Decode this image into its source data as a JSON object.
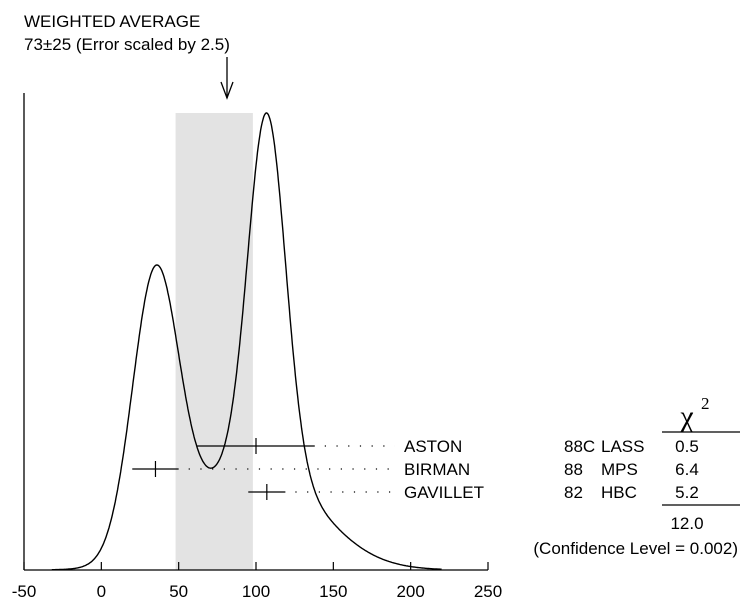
{
  "chart_data": {
    "type": "ideogram",
    "title": "WEIGHTED AVERAGE",
    "subtitle": "73±25 (Error scaled by 2.5)",
    "weighted_average": {
      "value": 73,
      "error": 25,
      "band": [
        48,
        98
      ]
    },
    "xlim": [
      -50,
      250
    ],
    "x_ticks": [
      -50,
      0,
      50,
      100,
      150,
      200,
      250
    ],
    "x_tick_labels": [
      "-50",
      "0",
      "50",
      "100",
      "150",
      "200",
      "250"
    ],
    "chi2_header": "χ",
    "chi2_superscript": "2",
    "measurements": [
      {
        "author": "ASTON",
        "year": "88C",
        "experiment": "LASS",
        "value": 100,
        "error": 38,
        "chi2": "0.5"
      },
      {
        "author": "BIRMAN",
        "year": "88",
        "experiment": "MPS",
        "value": 35,
        "error": 15,
        "chi2": "6.4"
      },
      {
        "author": "GAVILLET",
        "year": "82",
        "experiment": "HBC",
        "value": 107,
        "error": 12,
        "chi2": "5.2"
      }
    ],
    "chi2_total": "12.0",
    "confidence_level": "(Confidence Level = 0.002)"
  },
  "colors": {
    "band": "#e3e3e3",
    "ink": "#000000"
  }
}
